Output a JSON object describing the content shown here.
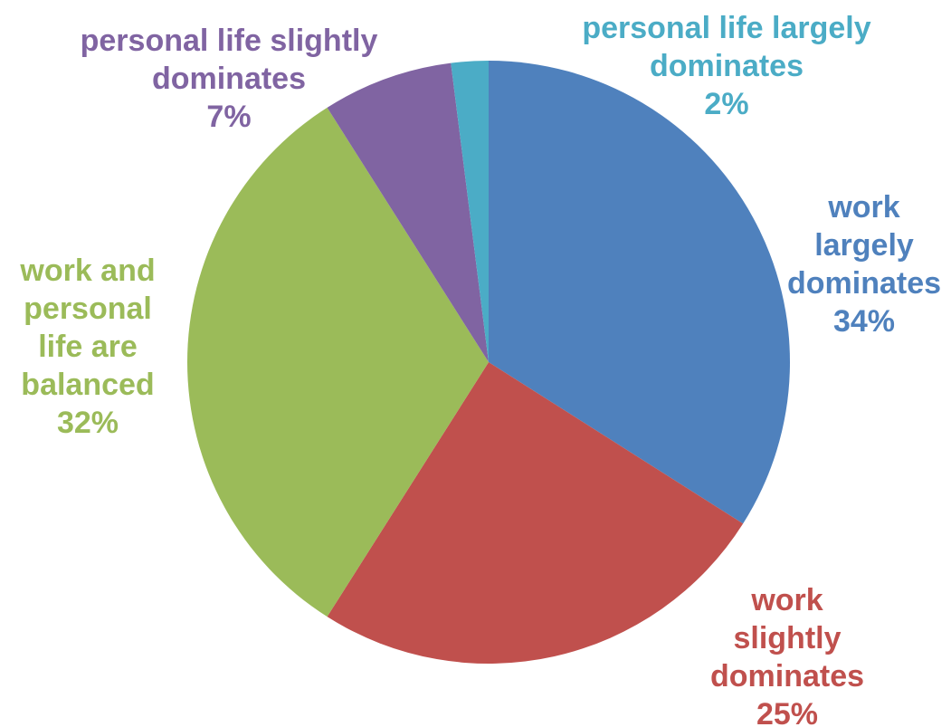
{
  "chart_data": {
    "type": "pie",
    "categories": [
      "work largely dominates",
      "work slightly dominates",
      "work and personal life are balanced",
      "personal life slightly dominates",
      "personal life largely dominates"
    ],
    "values": [
      34,
      25,
      32,
      7,
      2
    ],
    "value_labels": [
      "34%",
      "25%",
      "32%",
      "7%",
      "2%"
    ],
    "colors": [
      "#4f81bd",
      "#c0504d",
      "#9bbb59",
      "#8064a2",
      "#4bacc6"
    ]
  }
}
